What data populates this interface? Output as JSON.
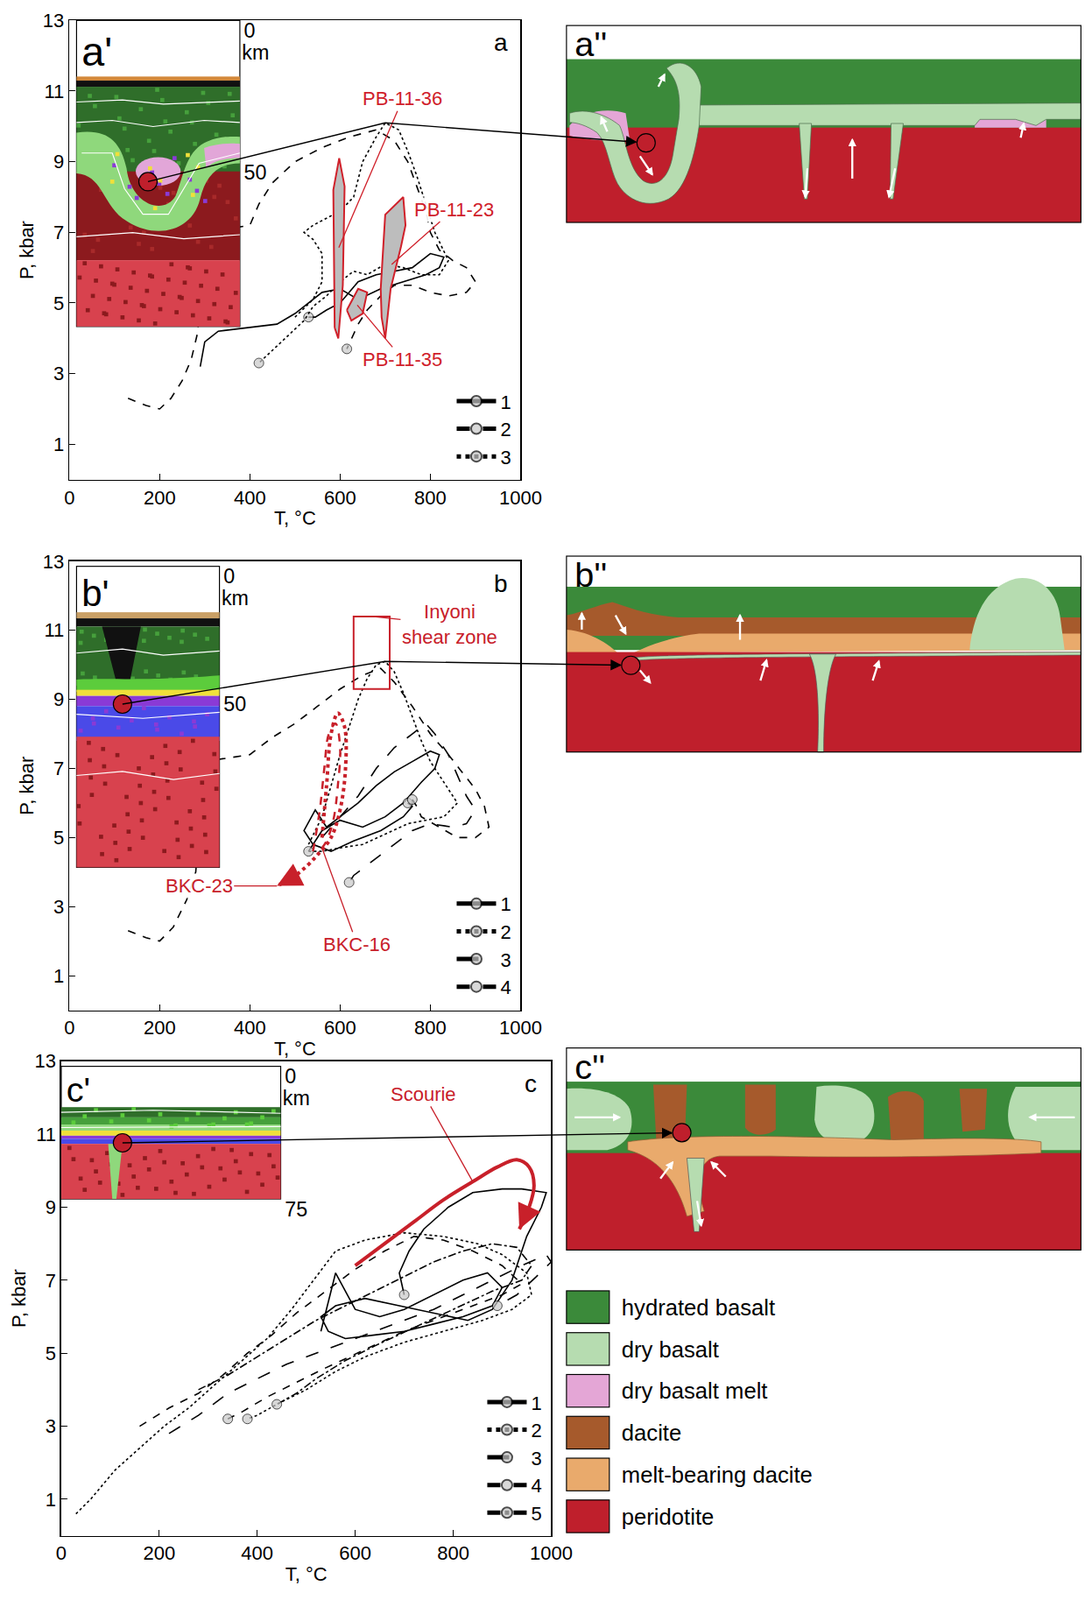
{
  "chart_data": [
    {
      "type": "line",
      "label": "a",
      "xlabel": "T, °C",
      "ylabel": "P, kbar",
      "xlim": [
        0,
        1000
      ],
      "xticks": [
        0,
        200,
        400,
        600,
        800,
        1000
      ],
      "ylim": [
        0,
        13
      ],
      "yticks": [
        1,
        3,
        5,
        7,
        9,
        11,
        13
      ],
      "grid": false,
      "legend": "lower right",
      "series": [
        {
          "name": "1",
          "line_style": "solid",
          "marker": "circle",
          "color": "#000000",
          "x": [
            290,
            300,
            330,
            400,
            460,
            500,
            520,
            560,
            600,
            640,
            690,
            740,
            790,
            820,
            830,
            800,
            760,
            720,
            680,
            640,
            600,
            570,
            545,
            530
          ],
          "values": [
            3.2,
            3.9,
            4.2,
            4.3,
            4.4,
            4.7,
            4.9,
            5.3,
            5.4,
            5.1,
            5.4,
            5.6,
            5.8,
            6.0,
            6.3,
            6.4,
            6.0,
            5.9,
            5.8,
            5.6,
            5.0,
            4.8,
            4.6,
            4.6
          ]
        },
        {
          "name": "2",
          "line_style": "dash",
          "marker": "circle",
          "color": "#000000",
          "x": [
            130,
            170,
            200,
            225,
            250,
            270,
            285,
            290,
            300,
            350,
            400,
            420,
            450,
            500,
            560,
            620,
            680,
            720,
            750,
            770,
            790,
            800,
            820,
            850,
            880,
            900,
            880,
            840,
            800,
            760,
            720,
            690,
            660,
            640,
            625,
            615
          ],
          "values": [
            2.3,
            2.1,
            2.0,
            2.3,
            2.8,
            3.4,
            4.2,
            6.0,
            7.0,
            7.1,
            7.2,
            7.8,
            8.4,
            9.0,
            9.4,
            9.7,
            9.9,
            9.6,
            9.0,
            8.3,
            7.6,
            7.0,
            6.5,
            6.2,
            6.0,
            5.6,
            5.3,
            5.2,
            5.3,
            5.5,
            5.5,
            5.2,
            4.8,
            4.4,
            4.0,
            3.7
          ]
        },
        {
          "name": "3",
          "line_style": "dot",
          "marker": "circle",
          "color": "#000000",
          "x": [
            500,
            540,
            560,
            560,
            540,
            520,
            540,
            600,
            630,
            650,
            680,
            700,
            730,
            750,
            770,
            790,
            810,
            840,
            820,
            780,
            740,
            700,
            660,
            630,
            600,
            570,
            540,
            520,
            470,
            420
          ],
          "values": [
            4.6,
            5.1,
            5.6,
            6.4,
            6.8,
            7.0,
            7.2,
            7.6,
            8.0,
            9.0,
            9.7,
            10.1,
            9.9,
            9.3,
            8.6,
            7.8,
            7.0,
            6.2,
            5.8,
            5.8,
            6.0,
            6.1,
            5.8,
            5.9,
            5.6,
            5.2,
            4.9,
            4.5,
            3.9,
            3.3
          ]
        }
      ],
      "samples": [
        {
          "name": "PB-11-36",
          "color": "#d0202a",
          "x": [
            588,
            585,
            598,
            610,
            606,
            596
          ],
          "values": [
            4.3,
            8.2,
            9.1,
            8.3,
            5.5,
            4.0
          ]
        },
        {
          "name": "PB-11-23",
          "color": "#d0202a",
          "x": [
            690,
            700,
            740,
            745,
            735,
            712,
            700,
            692
          ],
          "values": [
            5.4,
            7.5,
            8.0,
            7.2,
            6.6,
            5.4,
            4.0,
            4.6
          ]
        },
        {
          "name": "PB-11-35",
          "color": "#d0202a",
          "x": [
            615,
            640,
            660,
            650,
            625
          ],
          "values": [
            4.8,
            5.4,
            5.3,
            4.7,
            4.5
          ]
        }
      ],
      "linked_point": {
        "x": 700,
        "y": 10.1
      }
    },
    {
      "type": "line",
      "label": "b",
      "xlabel": "T, °C",
      "ylabel": "P, kbar",
      "xlim": [
        0,
        1000
      ],
      "xticks": [
        0,
        200,
        400,
        600,
        800,
        1000
      ],
      "ylim": [
        0,
        13
      ],
      "yticks": [
        1,
        3,
        5,
        7,
        9,
        11,
        13
      ],
      "grid": false,
      "legend": "lower right",
      "series": [
        {
          "name": "1",
          "line_style": "solid",
          "marker": "circle",
          "color": "#000000",
          "x": [
            530,
            560,
            600,
            650,
            700,
            740,
            780,
            810,
            820,
            800,
            760,
            720,
            680,
            640,
            600,
            570,
            545,
            520,
            540,
            580,
            630,
            690,
            740,
            760,
            750
          ],
          "values": [
            4.6,
            5.2,
            5.5,
            5.3,
            5.6,
            6.0,
            6.6,
            7.0,
            7.4,
            7.5,
            7.2,
            6.9,
            6.5,
            6.0,
            5.6,
            5.3,
            5.8,
            5.2,
            4.8,
            4.6,
            4.9,
            5.2,
            5.6,
            5.9,
            6.0
          ]
        },
        {
          "name": "2",
          "line_style": "dot",
          "marker": "circle",
          "color": "#000000",
          "x": [
            530,
            560,
            580,
            600,
            620,
            640,
            660,
            680,
            700,
            720,
            740,
            760,
            780,
            800,
            820,
            840,
            860,
            830,
            790,
            750,
            700,
            650,
            600,
            560,
            530
          ],
          "values": [
            4.8,
            5.6,
            6.5,
            7.4,
            8.2,
            9.0,
            9.6,
            10.0,
            10.1,
            9.8,
            9.2,
            8.5,
            7.8,
            7.2,
            6.8,
            6.4,
            6.0,
            5.6,
            5.5,
            5.4,
            5.1,
            4.8,
            4.7,
            4.6,
            4.6
          ]
        },
        {
          "name": "3",
          "line_style": "longdash",
          "marker": "circle",
          "color": "#000000",
          "x": [
            560,
            600,
            640,
            680,
            720,
            760,
            790,
            810,
            840,
            860,
            880,
            900,
            880,
            850,
            800,
            760,
            700,
            660,
            630,
            620
          ],
          "values": [
            5.0,
            5.6,
            6.2,
            7.0,
            7.6,
            8.0,
            8.3,
            8.0,
            7.4,
            6.8,
            6.2,
            5.8,
            5.4,
            5.3,
            5.4,
            5.2,
            4.6,
            4.2,
            3.9,
            3.7
          ]
        },
        {
          "name": "4",
          "line_style": "dash",
          "marker": "circle",
          "color": "#000000",
          "x": [
            130,
            170,
            200,
            230,
            260,
            280,
            290,
            300,
            350,
            400,
            450,
            500,
            550,
            600,
            650,
            690,
            720,
            760,
            800,
            840,
            870,
            900,
            920,
            930,
            900,
            860,
            820,
            780,
            770,
            760
          ],
          "values": [
            2.3,
            2.1,
            2.0,
            2.4,
            3.2,
            4.0,
            5.6,
            7.2,
            7.3,
            7.4,
            7.9,
            8.3,
            8.8,
            9.3,
            9.7,
            9.9,
            9.5,
            8.8,
            8.0,
            7.4,
            6.9,
            6.4,
            5.9,
            5.3,
            5.0,
            5.0,
            5.3,
            5.6,
            5.9,
            6.1
          ]
        }
      ],
      "paths": [
        {
          "name": "BKC-23",
          "color": "#c8202a",
          "line_style": "dot",
          "marker": "arrow",
          "x": [
            560,
            570,
            580,
            595,
            610,
            612,
            600,
            580,
            550,
            520,
            490,
            460
          ],
          "values": [
            5.0,
            6.5,
            8.0,
            8.6,
            8.2,
            7.0,
            5.8,
            5.0,
            4.5,
            4.1,
            3.8,
            3.6
          ]
        },
        {
          "name": "BKC-16",
          "color": "#c8202a",
          "line_style": "dash",
          "marker": "none",
          "x": [
            540,
            555,
            565,
            575,
            590,
            600,
            595,
            585,
            570,
            560
          ],
          "values": [
            4.6,
            5.8,
            7.0,
            8.0,
            8.3,
            7.6,
            6.5,
            5.5,
            4.9,
            4.7
          ]
        }
      ],
      "boxes": [
        {
          "name": "Inyoni shear zone",
          "color": "#c8202a",
          "x": [
            630,
            710
          ],
          "values": [
            9.3,
            11.4
          ]
        }
      ],
      "linked_point": {
        "x": 700,
        "y": 10.1
      }
    },
    {
      "type": "line",
      "label": "c",
      "xlabel": "T, °C",
      "ylabel": "P, kbar",
      "xlim": [
        0,
        1000
      ],
      "xticks": [
        0,
        200,
        400,
        600,
        800,
        1000
      ],
      "ylim": [
        0,
        13
      ],
      "yticks": [
        1,
        3,
        5,
        7,
        9,
        11,
        13
      ],
      "grid": false,
      "legend": "lower right",
      "series": [
        {
          "name": "1",
          "line_style": "solid",
          "marker": "circle",
          "color": "#000000",
          "x": [
            530,
            560,
            600,
            650,
            700,
            760,
            820,
            870,
            900,
            880,
            820,
            760,
            700,
            640,
            580,
            545,
            530,
            560,
            620,
            690,
            760,
            830,
            880,
            920,
            950,
            980,
            990,
            940,
            900,
            840,
            790,
            740,
            710,
            690,
            700
          ],
          "values": [
            5.6,
            7.2,
            6.2,
            6.0,
            6.2,
            6.6,
            7.0,
            7.2,
            6.8,
            6.3,
            6.0,
            5.8,
            5.6,
            5.5,
            5.4,
            5.6,
            6.0,
            6.3,
            6.5,
            6.3,
            6.1,
            5.9,
            6.2,
            7.0,
            8.2,
            9.0,
            9.4,
            9.5,
            9.5,
            9.4,
            9.0,
            8.4,
            7.8,
            7.2,
            6.6
          ]
        },
        {
          "name": "2",
          "line_style": "dot",
          "marker": "circle",
          "color": "#000000",
          "x": [
            30,
            60,
            110,
            160,
            210,
            260,
            310,
            360,
            420,
            470,
            520,
            560,
            620,
            700,
            780,
            850,
            900,
            950,
            960,
            920,
            860,
            780,
            700,
            620,
            560,
            500,
            440,
            400,
            380
          ],
          "values": [
            0.6,
            1.0,
            1.8,
            2.4,
            3.0,
            3.5,
            4.1,
            4.7,
            5.4,
            6.2,
            7.1,
            7.8,
            8.1,
            8.3,
            8.2,
            8.0,
            7.7,
            7.2,
            6.6,
            6.2,
            5.9,
            5.6,
            5.3,
            4.9,
            4.5,
            4.0,
            3.6,
            3.3,
            3.2
          ]
        },
        {
          "name": "3",
          "line_style": "longdash",
          "marker": "circle",
          "color": "#000000",
          "x": [
            220,
            280,
            340,
            400,
            460,
            520,
            580,
            640,
            700,
            760,
            820,
            880,
            940,
            990,
            1000,
            970,
            930,
            890
          ],
          "values": [
            2.8,
            3.3,
            3.9,
            4.3,
            4.7,
            5.0,
            5.3,
            5.6,
            5.9,
            6.2,
            6.6,
            7.0,
            7.4,
            7.7,
            7.5,
            7.1,
            6.6,
            6.3
          ]
        },
        {
          "name": "4",
          "line_style": "dash",
          "marker": "circle",
          "color": "#000000",
          "x": [
            160,
            220,
            280,
            330,
            380,
            430,
            480,
            540,
            600,
            660,
            720,
            780,
            840,
            900,
            940,
            900,
            840,
            780,
            700,
            620,
            540,
            480,
            420,
            370,
            340
          ],
          "values": [
            3.0,
            3.5,
            3.9,
            4.4,
            5.0,
            5.5,
            6.1,
            6.7,
            7.3,
            7.8,
            8.2,
            8.1,
            7.8,
            7.4,
            6.9,
            6.6,
            6.3,
            6.0,
            5.6,
            5.1,
            4.6,
            4.2,
            3.8,
            3.4,
            3.2
          ]
        },
        {
          "name": "5",
          "line_style": "dashdot",
          "marker": "circle",
          "color": "#000000",
          "x": [
            280,
            340,
            400,
            460,
            520,
            580,
            640,
            700,
            760,
            820,
            880,
            930,
            960,
            940,
            880,
            800,
            720,
            640,
            580,
            520,
            480,
            440
          ],
          "values": [
            4.0,
            4.4,
            4.9,
            5.4,
            5.9,
            6.3,
            6.7,
            7.1,
            7.5,
            7.8,
            8.0,
            7.9,
            7.4,
            7.0,
            6.7,
            6.2,
            5.7,
            5.2,
            4.8,
            4.3,
            3.9,
            3.6
          ]
        }
      ],
      "paths": [
        {
          "name": "Scourie",
          "color": "#c8202a",
          "line_style": "solid",
          "marker": "arrow",
          "x": [
            600,
            660,
            720,
            780,
            840,
            890,
            930,
            955,
            965,
            955,
            935
          ],
          "values": [
            7.4,
            8.0,
            8.6,
            9.2,
            9.7,
            10.1,
            10.3,
            10.1,
            9.6,
            9.0,
            8.4
          ]
        }
      ]
    }
  ],
  "snapshots": [
    {
      "label": "a'",
      "depth_top": 0,
      "depth_unit": "km",
      "depth_mark": 50
    },
    {
      "label": "b'",
      "depth_top": 0,
      "depth_unit": "km",
      "depth_mark": 50
    },
    {
      "label": "c'",
      "depth_top": 0,
      "depth_unit": "km",
      "depth_mark": 75
    }
  ],
  "schematics": [
    {
      "label": "a''"
    },
    {
      "label": "b''"
    },
    {
      "label": "c''"
    }
  ],
  "color_key": [
    {
      "name": "hydrated basalt",
      "color": "#3b8a3a"
    },
    {
      "name": "dry basalt",
      "color": "#b6dcb0"
    },
    {
      "name": "dry basalt melt",
      "color": "#e4a6d6"
    },
    {
      "name": "dacite",
      "color": "#a65a2c"
    },
    {
      "name": "melt-bearing dacite",
      "color": "#e9aa6c"
    },
    {
      "name": "peridotite",
      "color": "#bf1f2c"
    }
  ]
}
